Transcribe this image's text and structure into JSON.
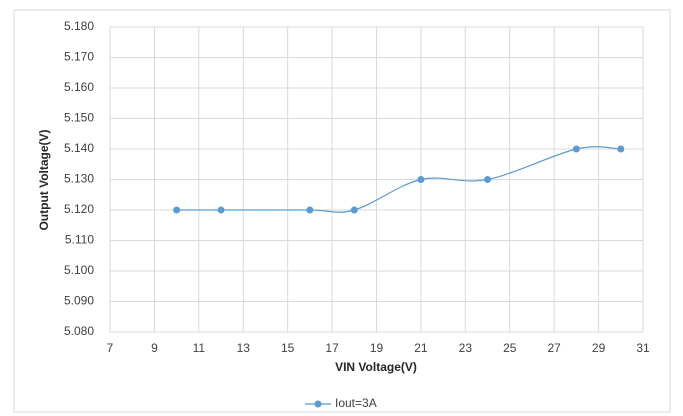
{
  "chart_data": {
    "type": "line",
    "x_label": "VIN Voltage(V)",
    "y_label": "Output Voltage(V)",
    "x": [
      10,
      12,
      16,
      18,
      21,
      24,
      28,
      30
    ],
    "series": [
      {
        "name": "Iout=3A",
        "color": "#5b9bd5",
        "values": [
          5.12,
          5.12,
          5.12,
          5.12,
          5.13,
          5.13,
          5.14,
          5.14
        ]
      }
    ],
    "xlim": [
      7,
      31
    ],
    "xticks": [
      7,
      9,
      11,
      13,
      15,
      17,
      19,
      21,
      23,
      25,
      27,
      29,
      31
    ],
    "ylim": [
      5.08,
      5.18
    ],
    "yticks": [
      {
        "value": 5.08,
        "label": "5.080"
      },
      {
        "value": 5.09,
        "label": "5.090"
      },
      {
        "value": 5.1,
        "label": "5.100"
      },
      {
        "value": 5.11,
        "label": "5.110"
      },
      {
        "value": 5.12,
        "label": "5.120"
      },
      {
        "value": 5.13,
        "label": "5.130"
      },
      {
        "value": 5.14,
        "label": "5.140"
      },
      {
        "value": 5.15,
        "label": "5.150"
      },
      {
        "value": 5.16,
        "label": "5.160"
      },
      {
        "value": 5.17,
        "label": "5.170"
      },
      {
        "value": 5.18,
        "label": "5.180"
      }
    ],
    "grid": true,
    "smooth": true,
    "legend": "bottom"
  }
}
